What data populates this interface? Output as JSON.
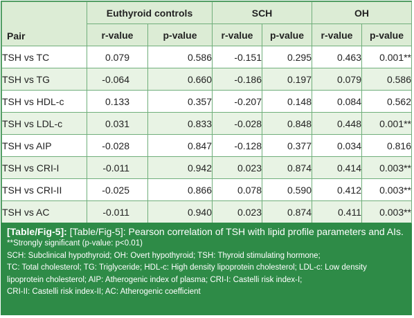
{
  "header": {
    "group1": "Euthyroid controls",
    "group2": "SCH",
    "group3": "OH",
    "pair_label": "Pair",
    "r_label": "r-value",
    "p_label": "p-value"
  },
  "rows": [
    {
      "pair": "TSH vs TC",
      "e_r": "0.079",
      "e_p": "0.586",
      "s_r": "-0.151",
      "s_p": "0.295",
      "o_r": "0.463",
      "o_p": "0.001**"
    },
    {
      "pair": "TSH vs TG",
      "e_r": "-0.064",
      "e_p": "0.660",
      "s_r": "-0.186",
      "s_p": "0.197",
      "o_r": "0.079",
      "o_p": "0.586"
    },
    {
      "pair": "TSH vs HDL-c",
      "e_r": "0.133",
      "e_p": "0.357",
      "s_r": "-0.207",
      "s_p": "0.148",
      "o_r": "0.084",
      "o_p": "0.562"
    },
    {
      "pair": "TSH vs LDL-c",
      "e_r": "0.031",
      "e_p": "0.833",
      "s_r": "-0.028",
      "s_p": "0.848",
      "o_r": "0.448",
      "o_p": "0.001**"
    },
    {
      "pair": "TSH vs AIP",
      "e_r": "-0.028",
      "e_p": "0.847",
      "s_r": "-0.128",
      "s_p": "0.377",
      "o_r": "0.034",
      "o_p": "0.816"
    },
    {
      "pair": "TSH vs CRI-I",
      "e_r": "-0.011",
      "e_p": "0.942",
      "s_r": "0.023",
      "s_p": "0.874",
      "o_r": "0.414",
      "o_p": "0.003**"
    },
    {
      "pair": "TSH vs CRI-II",
      "e_r": "-0.025",
      "e_p": "0.866",
      "s_r": "0.078",
      "s_p": "0.590",
      "o_r": "0.412",
      "o_p": "0.003**"
    },
    {
      "pair": "TSH vs AC",
      "e_r": "-0.011",
      "e_p": "0.940",
      "s_r": "0.023",
      "s_p": "0.874",
      "o_r": "0.411",
      "o_p": "0.003**"
    }
  ],
  "footer": {
    "caption_tag": "[Table/Fig-5]:",
    "caption_text": " [Table/Fig-5]: Pearson correlation of TSH with lipid profile parameters and AIs.",
    "note1": "**Strongly significant (p-value: p<0.01)",
    "note2": "SCH: Subclinical hypothyroid; OH: Overt hypothyroid; TSH: Thyroid stimulating hormone;",
    "note3": "TC: Total cholesterol; TG: Triglyceride; HDL-c: High density lipoprotein cholesterol; LDL-c: Low density lipoprotein cholesterol; AIP: Atherogenic index of plasma; CRI-I: Castelli risk index-I;",
    "note4": "CRI-II: Castelli risk index-II; AC: Atherogenic coefficient"
  },
  "colors": {
    "accent_green": "#2e8b47",
    "header_bg": "#dcecd5",
    "stripe_bg": "#e8f3e4",
    "header_text": "#2b8a3e"
  }
}
